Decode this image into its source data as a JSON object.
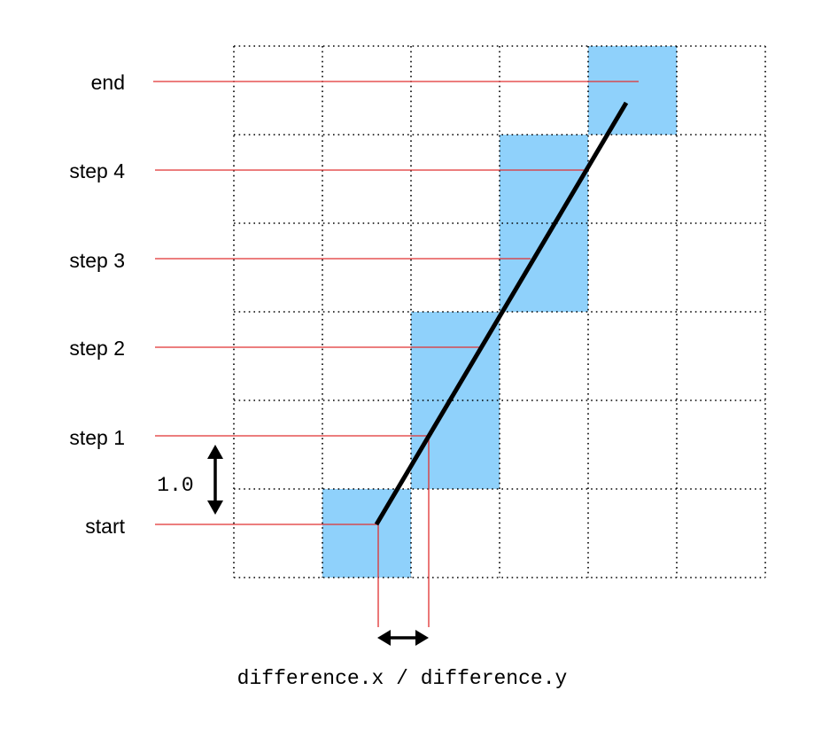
{
  "labels": {
    "end": "end",
    "step4": "step 4",
    "step3": "step 3",
    "step2": "step 2",
    "step1": "step 1",
    "start": "start",
    "unit": "1.0",
    "formula": "difference.x / difference.y"
  },
  "colors": {
    "cell_fill": "#8fd1fb",
    "row_lines": "#e03030",
    "path_line": "#000000",
    "grid": "#000000"
  }
}
